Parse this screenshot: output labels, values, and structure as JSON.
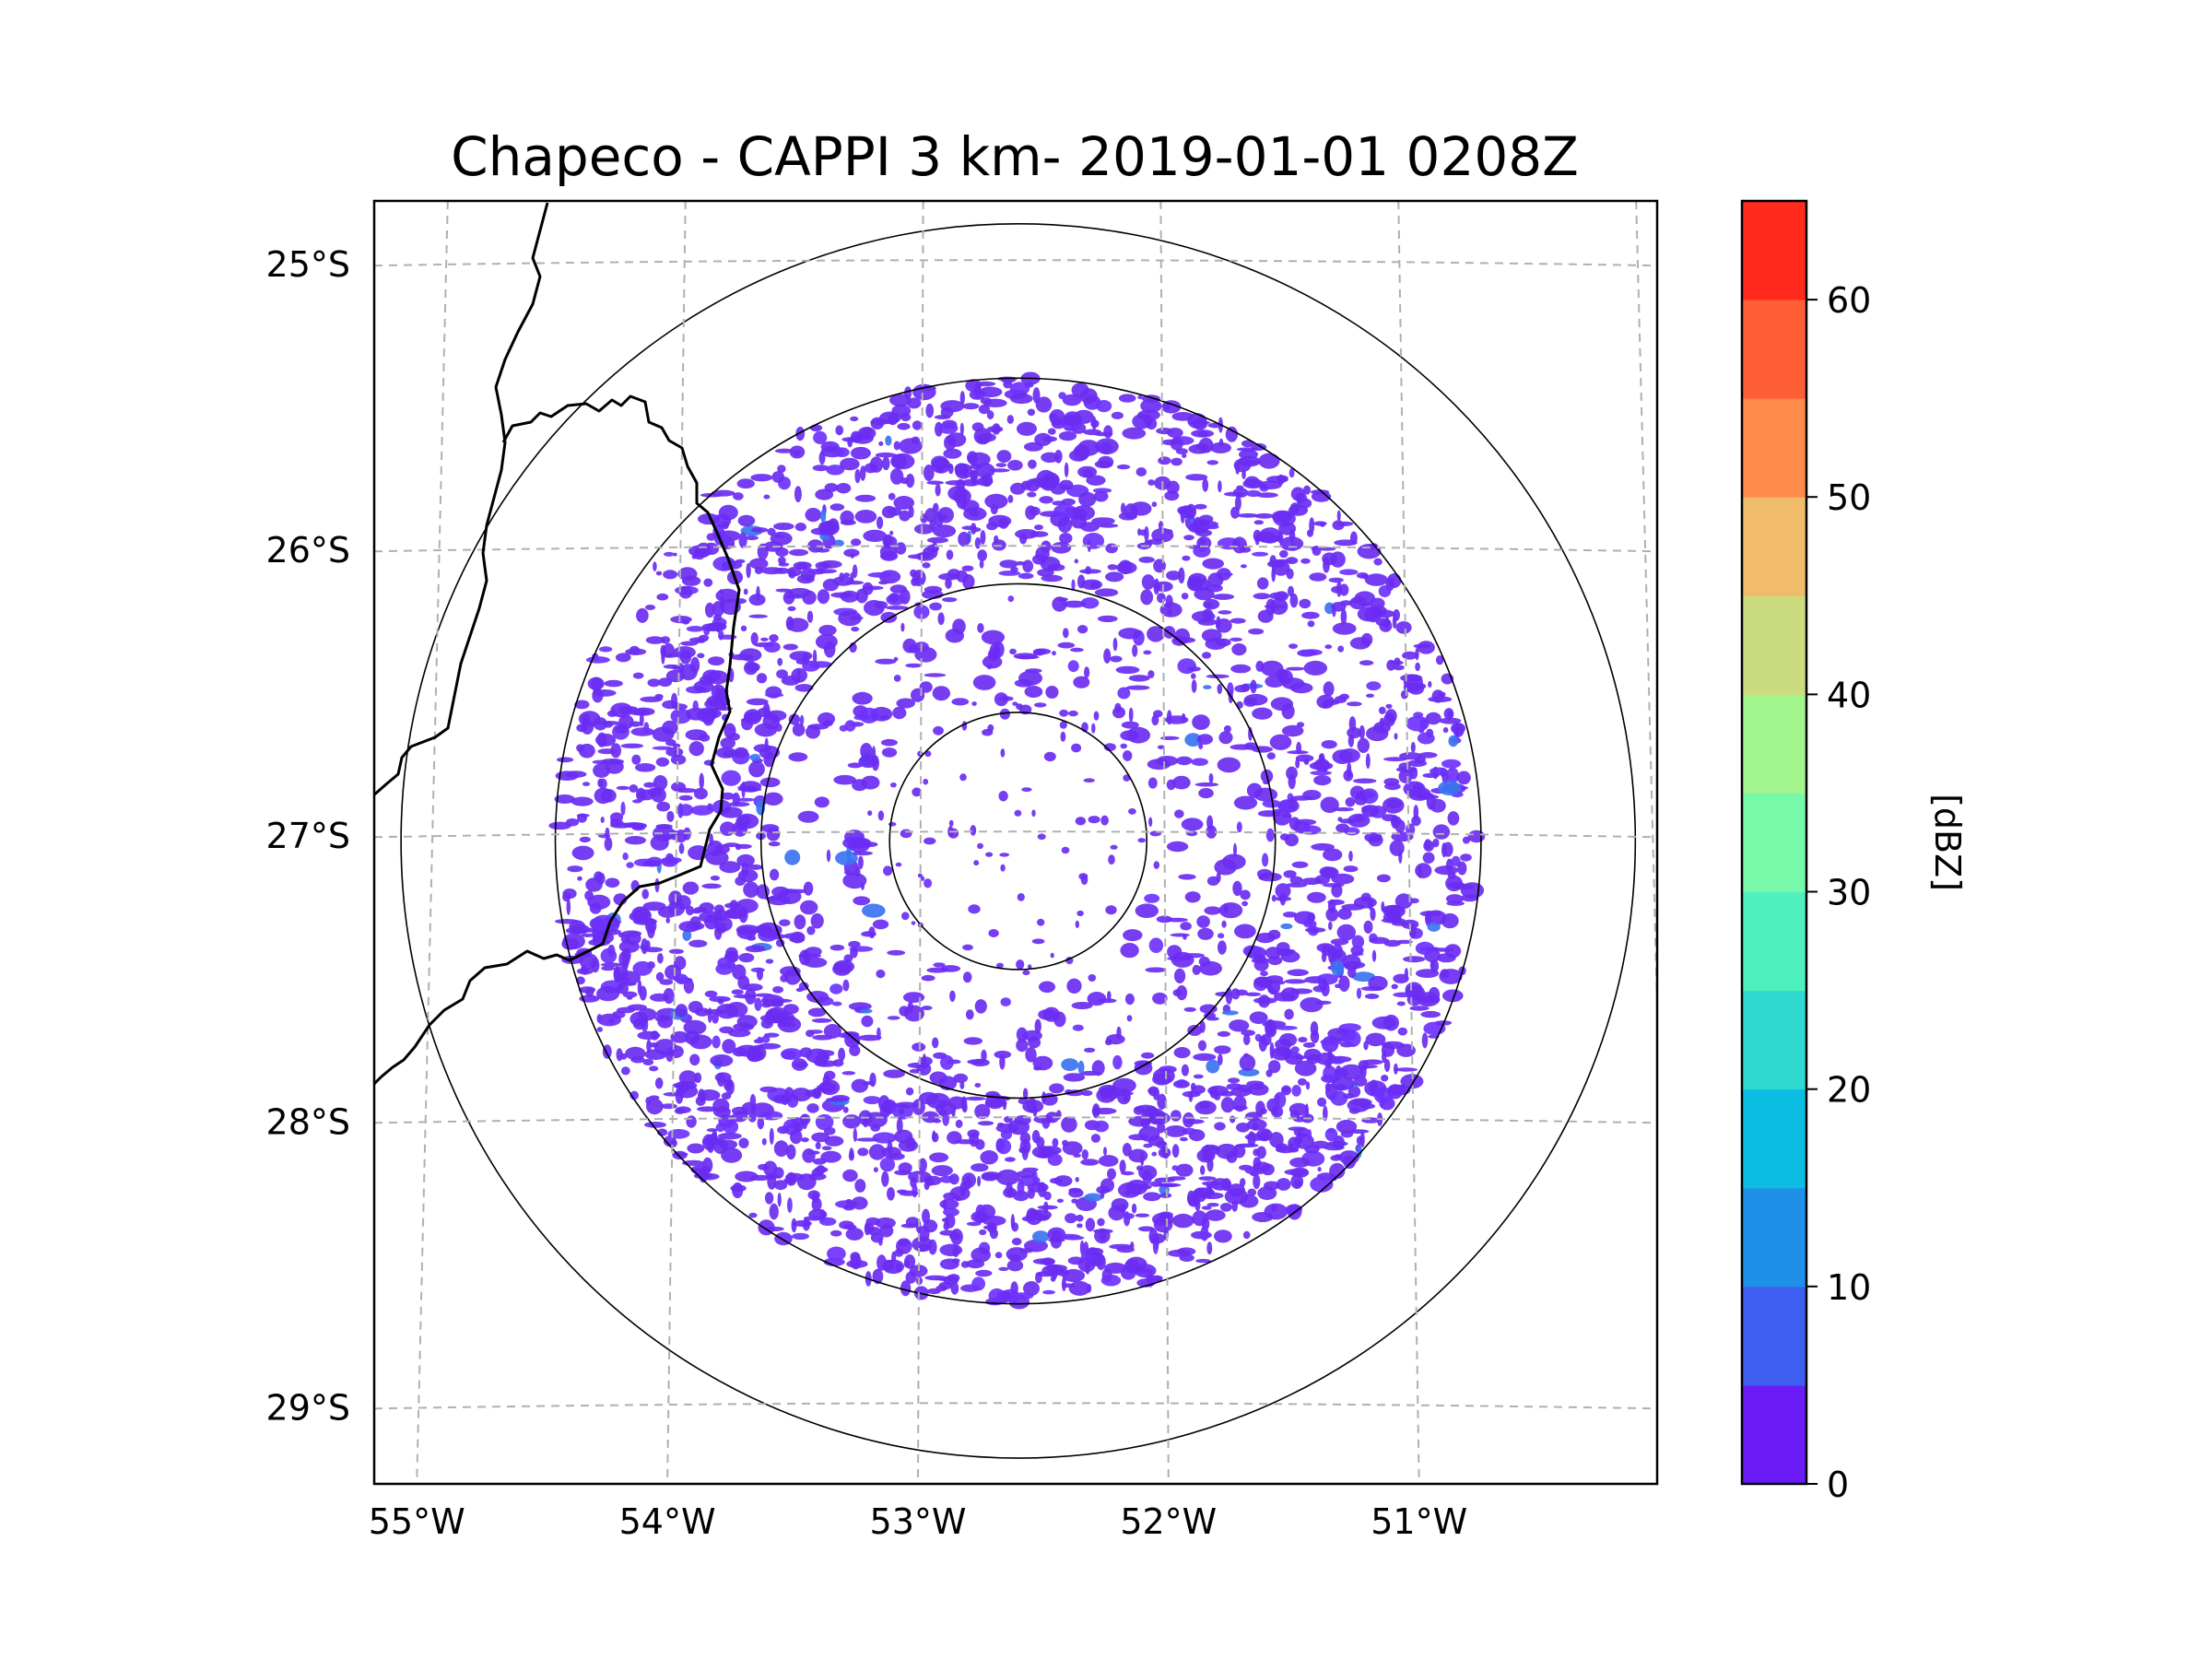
{
  "title": "Chapeco - CAPPI 3 km- 2019-01-01 0208Z",
  "map": {
    "lat_labels": [
      "25°S",
      "26°S",
      "27°S",
      "28°S",
      "29°S"
    ],
    "lat_values": [
      -25,
      -26,
      -27,
      -28,
      -29
    ],
    "lon_labels": [
      "55°W",
      "54°W",
      "53°W",
      "52°W",
      "51°W"
    ],
    "lon_values": [
      -55,
      -54,
      -53,
      -52,
      -51
    ],
    "extent": {
      "lon_min": -55.17,
      "lon_max": -50.05,
      "lat_min": -29.27,
      "lat_max": -24.78
    },
    "radar_center": {
      "lon": -52.6,
      "lat": -27.02
    },
    "range_rings_deg": [
      0.45,
      0.9,
      1.62,
      2.16
    ],
    "gridline_style": "dashed"
  },
  "colorbar": {
    "label": "[dBZ]",
    "tick_labels": [
      "0",
      "10",
      "20",
      "30",
      "40",
      "50",
      "60"
    ],
    "tick_values": [
      0,
      10,
      20,
      30,
      40,
      50,
      60
    ],
    "min": 0,
    "max": 65,
    "step": 5,
    "colors": [
      "#6a1bf5",
      "#3d5ef0",
      "#1e90e8",
      "#0bbde0",
      "#2ed9cf",
      "#4ef0bd",
      "#78f8a9",
      "#a2f58c",
      "#cbdc7e",
      "#f0bb6a",
      "#ff8b4b",
      "#ff5d36",
      "#ff2a1c"
    ]
  },
  "colors": {
    "echo_primary": "#6a2cf2",
    "echo_secondary": "#6e32ff",
    "echo_tertiary": "#3a74f0",
    "border_line": "#000000",
    "gridline": "#b0b0b0"
  }
}
